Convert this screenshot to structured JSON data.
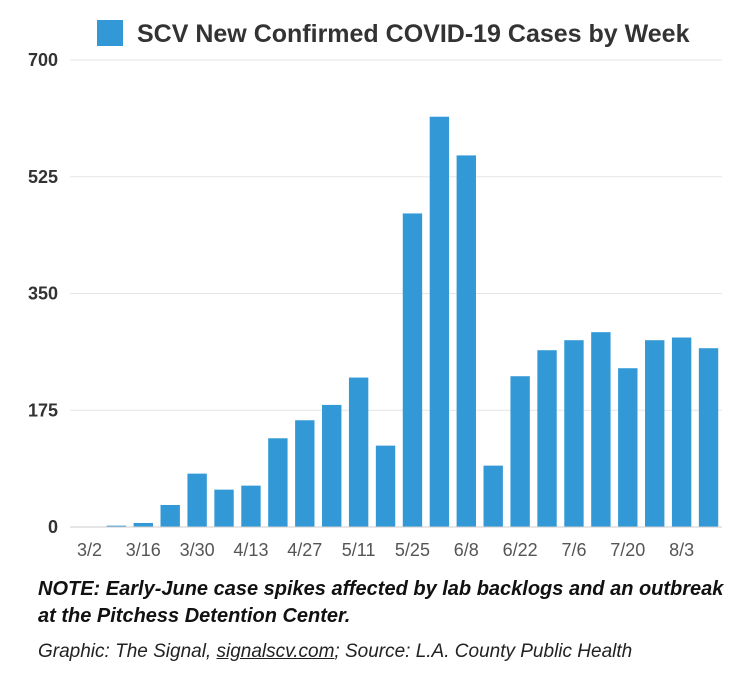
{
  "chart_data": {
    "type": "bar",
    "title": "",
    "legend": {
      "position": "top-center",
      "entries": [
        "SCV New Confirmed COVID-19 Cases by Week"
      ]
    },
    "series": [
      {
        "name": "SCV New Confirmed COVID-19 Cases by Week",
        "color": "#3399d6",
        "values": [
          0,
          2,
          6,
          33,
          80,
          56,
          62,
          133,
          160,
          183,
          224,
          122,
          470,
          615,
          557,
          92,
          226,
          265,
          280,
          292,
          238,
          280,
          284,
          268
        ]
      }
    ],
    "categories": [
      "3/2",
      "3/9",
      "3/16",
      "3/23",
      "3/30",
      "4/6",
      "4/13",
      "4/20",
      "4/27",
      "5/4",
      "5/11",
      "5/18",
      "5/25",
      "6/1",
      "6/8",
      "6/15",
      "6/22",
      "6/29",
      "7/6",
      "7/13",
      "7/20",
      "7/27",
      "8/3",
      "8/10"
    ],
    "x_tick_labels": [
      "3/2",
      "3/16",
      "3/30",
      "4/13",
      "4/27",
      "5/11",
      "5/25",
      "6/8",
      "6/22",
      "7/6",
      "7/20",
      "8/3"
    ],
    "y_ticks": [
      0,
      175,
      350,
      525,
      700
    ],
    "ylim": [
      0,
      700
    ],
    "xlabel": "",
    "ylabel": "",
    "grid": true
  },
  "footer": {
    "note": "NOTE: Early-June case spikes affected by lab backlogs and an outbreak at the Pitchess Detention Center.",
    "credit_prefix": "Graphic: The Signal, ",
    "credit_link": "signalscv.com",
    "credit_suffix": "; Source: L.A. County Public Health"
  }
}
